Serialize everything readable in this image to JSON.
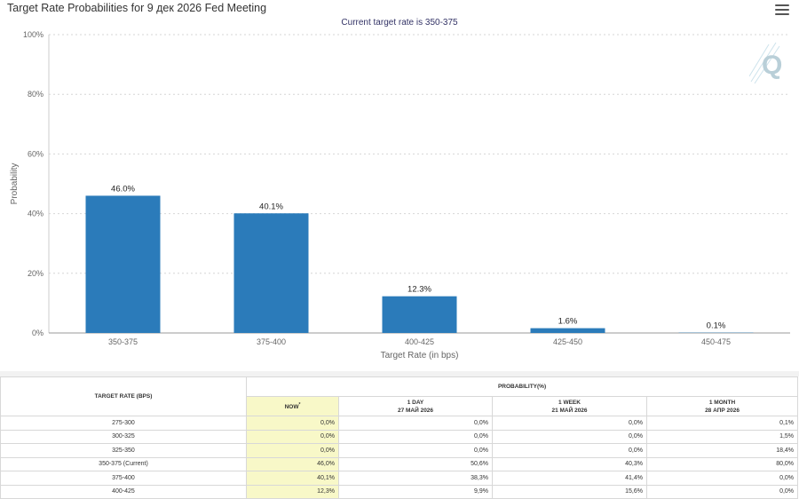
{
  "header": {
    "title": "Target Rate Probabilities for 9 дек 2026 Fed Meeting",
    "subtitle": "Current target rate is 350-375",
    "menu_icon": "hamburger-menu-icon",
    "watermark_icon": "q-logo-icon"
  },
  "chart_data": {
    "type": "bar",
    "title": "Target Rate Probabilities for 9 дек 2026 Fed Meeting",
    "subtitle": "Current target rate is 350-375",
    "xlabel": "Target Rate (in bps)",
    "ylabel": "Probability",
    "categories": [
      "350-375",
      "375-400",
      "400-425",
      "425-450",
      "450-475"
    ],
    "values": [
      46.0,
      40.1,
      12.3,
      1.6,
      0.1
    ],
    "data_labels": [
      "46.0%",
      "40.1%",
      "12.3%",
      "1.6%",
      "0.1%"
    ],
    "ylim": [
      0,
      100
    ],
    "yticks": [
      "0%",
      "20%",
      "40%",
      "60%",
      "80%",
      "100%"
    ],
    "grid": true,
    "bar_color": "#2b7bba"
  },
  "table": {
    "header_rate": "TARGET RATE (BPS)",
    "header_prob": "PROBABILITY(%)",
    "columns": [
      {
        "line1": "NOW",
        "line2": "",
        "sup": "*"
      },
      {
        "line1": "1 DAY",
        "line2": "27 МАЙ 2026",
        "sup": ""
      },
      {
        "line1": "1 WEEK",
        "line2": "21 МАЙ 2026",
        "sup": ""
      },
      {
        "line1": "1 MONTH",
        "line2": "28 АПР 2026",
        "sup": ""
      }
    ],
    "rows": [
      {
        "rate": "275-300",
        "values": [
          "0,0%",
          "0,0%",
          "0,0%",
          "0,1%"
        ]
      },
      {
        "rate": "300-325",
        "values": [
          "0,0%",
          "0,0%",
          "0,0%",
          "1,5%"
        ]
      },
      {
        "rate": "325-350",
        "values": [
          "0,0%",
          "0,0%",
          "0,0%",
          "18,4%"
        ]
      },
      {
        "rate": "350-375 (Current)",
        "values": [
          "46,0%",
          "50,6%",
          "40,3%",
          "80,0%"
        ]
      },
      {
        "rate": "375-400",
        "values": [
          "40,1%",
          "38,3%",
          "41,4%",
          "0,0%"
        ]
      },
      {
        "rate": "400-425",
        "values": [
          "12,3%",
          "9,9%",
          "15,6%",
          "0,0%"
        ]
      }
    ],
    "now_highlight": "#f8f8c8"
  }
}
